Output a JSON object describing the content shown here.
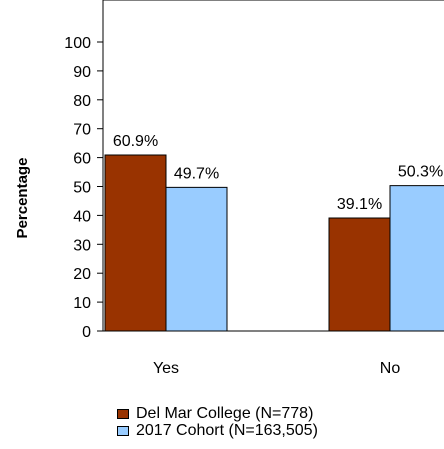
{
  "chart_data": {
    "type": "bar",
    "ylabel": "Percentage",
    "ylim": [
      0,
      100
    ],
    "yticks": [
      0,
      10,
      20,
      30,
      40,
      50,
      60,
      70,
      80,
      90,
      100
    ],
    "categories": [
      "Yes",
      "No"
    ],
    "series": [
      {
        "name": "Del Mar College (N=778)",
        "values": [
          60.9,
          39.1
        ],
        "labels": [
          "60.9%",
          "39.1%"
        ],
        "color": "#993300"
      },
      {
        "name": "2017 Cohort (N=163,505)",
        "values": [
          49.7,
          50.3
        ],
        "labels": [
          "49.7%",
          "50.3%"
        ],
        "color": "#99ccff"
      }
    ],
    "grid": false,
    "legend_position": "bottom"
  }
}
